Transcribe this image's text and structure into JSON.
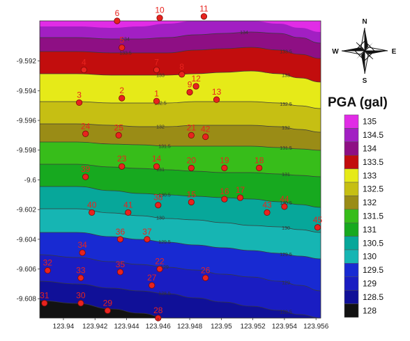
{
  "legend": {
    "title": "PGA (gal)",
    "levels": [
      {
        "value": "135",
        "color": "#e12ce6"
      },
      {
        "value": "134.5",
        "color": "#a21fc3"
      },
      {
        "value": "134",
        "color": "#8e0f84"
      },
      {
        "value": "133.5",
        "color": "#c20d0d"
      },
      {
        "value": "133",
        "color": "#e6ea18"
      },
      {
        "value": "132.5",
        "color": "#c6bf13"
      },
      {
        "value": "132",
        "color": "#9a8c16"
      },
      {
        "value": "131.5",
        "color": "#37bd1a"
      },
      {
        "value": "131",
        "color": "#17a91f"
      },
      {
        "value": "130.5",
        "color": "#07a79a"
      },
      {
        "value": "130",
        "color": "#16b5b3"
      },
      {
        "value": "129.5",
        "color": "#182ad2"
      },
      {
        "value": "129",
        "color": "#1a1dc2"
      },
      {
        "value": "128.5",
        "color": "#101098"
      },
      {
        "value": "128",
        "color": "#121212"
      }
    ]
  },
  "compass": {
    "n": "N",
    "s": "S",
    "e": "E",
    "w": "W"
  },
  "axes": {
    "y_ticks": [
      "-9.592",
      "-9.594",
      "-9.596",
      "-9.598",
      "-9.6",
      "-9.602",
      "-9.604",
      "-9.606",
      "-9.608"
    ],
    "x_ticks": [
      "123.94",
      "123.942",
      "123.944",
      "123.946",
      "123.948",
      "123.95",
      "123.952",
      "123.954",
      "123.956"
    ]
  },
  "bands": [
    {
      "value": "135",
      "color": "#e12ce6"
    },
    {
      "value": "134.5",
      "color": "#a21fc3"
    },
    {
      "value": "134",
      "color": "#8e0f84"
    },
    {
      "value": "133.5",
      "color": "#c20d0d"
    },
    {
      "value": "133",
      "color": "#e6ea18"
    },
    {
      "value": "132.5",
      "color": "#c6bf13"
    },
    {
      "value": "132",
      "color": "#9a8c16"
    },
    {
      "value": "131.5",
      "color": "#37bd1a"
    },
    {
      "value": "131",
      "color": "#17a91f"
    },
    {
      "value": "130.5",
      "color": "#07a79a"
    },
    {
      "value": "130",
      "color": "#16b5b3"
    },
    {
      "value": "129.5",
      "color": "#182ad2"
    },
    {
      "value": "129",
      "color": "#1a1dc2"
    },
    {
      "value": "128.5",
      "color": "#101098"
    },
    {
      "value": "128",
      "color": "#121212"
    }
  ],
  "contour_labels": [
    "134",
    "133.5",
    "133",
    "132.5",
    "132",
    "131.5",
    "131",
    "130.5",
    "130",
    "129.5",
    "129",
    "128.5"
  ],
  "stations": [
    {
      "id": "1",
      "lon": 123.9459,
      "lat": -9.5947
    },
    {
      "id": "2",
      "lon": 123.9437,
      "lat": -9.5945
    },
    {
      "id": "3",
      "lon": 123.941,
      "lat": -9.5948
    },
    {
      "id": "4",
      "lon": 123.9413,
      "lat": -9.5926
    },
    {
      "id": "5",
      "lon": 123.9437,
      "lat": -9.5911
    },
    {
      "id": "6",
      "lon": 123.9434,
      "lat": -9.5893
    },
    {
      "id": "7",
      "lon": 123.9459,
      "lat": -9.5926
    },
    {
      "id": "8",
      "lon": 123.9475,
      "lat": -9.5929
    },
    {
      "id": "9",
      "lon": 123.948,
      "lat": -9.5941
    },
    {
      "id": "10",
      "lon": 123.9461,
      "lat": -9.5891
    },
    {
      "id": "11",
      "lon": 123.9489,
      "lat": -9.589
    },
    {
      "id": "12",
      "lon": 123.9484,
      "lat": -9.5937
    },
    {
      "id": "13",
      "lon": 123.9497,
      "lat": -9.5946
    },
    {
      "id": "14",
      "lon": 123.9459,
      "lat": -9.5991
    },
    {
      "id": "15",
      "lon": 123.9481,
      "lat": -9.6015
    },
    {
      "id": "16",
      "lon": 123.9502,
      "lat": -9.6013
    },
    {
      "id": "17",
      "lon": 123.9512,
      "lat": -9.6012
    },
    {
      "id": "18",
      "lon": 123.9524,
      "lat": -9.5992
    },
    {
      "id": "19",
      "lon": 123.9502,
      "lat": -9.5992
    },
    {
      "id": "20",
      "lon": 123.9481,
      "lat": -9.5992
    },
    {
      "id": "21",
      "lon": 123.9481,
      "lat": -9.597
    },
    {
      "id": "22",
      "lon": 123.9461,
      "lat": -9.606
    },
    {
      "id": "23",
      "lon": 123.9437,
      "lat": -9.5991
    },
    {
      "id": "24",
      "lon": 123.9414,
      "lat": -9.5969
    },
    {
      "id": "25",
      "lon": 123.9435,
      "lat": -9.597
    },
    {
      "id": "26",
      "lon": 123.949,
      "lat": -9.6066
    },
    {
      "id": "27",
      "lon": 123.9456,
      "lat": -9.6071
    },
    {
      "id": "28",
      "lon": 123.946,
      "lat": -9.6093
    },
    {
      "id": "29",
      "lon": 123.9428,
      "lat": -9.6088
    },
    {
      "id": "30",
      "lon": 123.9411,
      "lat": -9.6083
    },
    {
      "id": "31",
      "lon": 123.9388,
      "lat": -9.6083
    },
    {
      "id": "32",
      "lon": 123.939,
      "lat": -9.6061
    },
    {
      "id": "33",
      "lon": 123.9411,
      "lat": -9.6066
    },
    {
      "id": "34",
      "lon": 123.9412,
      "lat": -9.6049
    },
    {
      "id": "35",
      "lon": 123.9436,
      "lat": -9.6062
    },
    {
      "id": "36",
      "lon": 123.9436,
      "lat": -9.604
    },
    {
      "id": "37",
      "lon": 123.9453,
      "lat": -9.604
    },
    {
      "id": "38",
      "lon": 123.946,
      "lat": -9.6017
    },
    {
      "id": "39",
      "lon": 123.9414,
      "lat": -9.5998
    },
    {
      "id": "40",
      "lon": 123.9418,
      "lat": -9.6022
    },
    {
      "id": "41",
      "lon": 123.9441,
      "lat": -9.6022
    },
    {
      "id": "42",
      "lon": 123.949,
      "lat": -9.5971
    },
    {
      "id": "43",
      "lon": 123.9529,
      "lat": -9.6022
    },
    {
      "id": "44",
      "lon": 123.954,
      "lat": -9.6018
    },
    {
      "id": "45",
      "lon": 123.9561,
      "lat": -9.6032
    }
  ]
}
